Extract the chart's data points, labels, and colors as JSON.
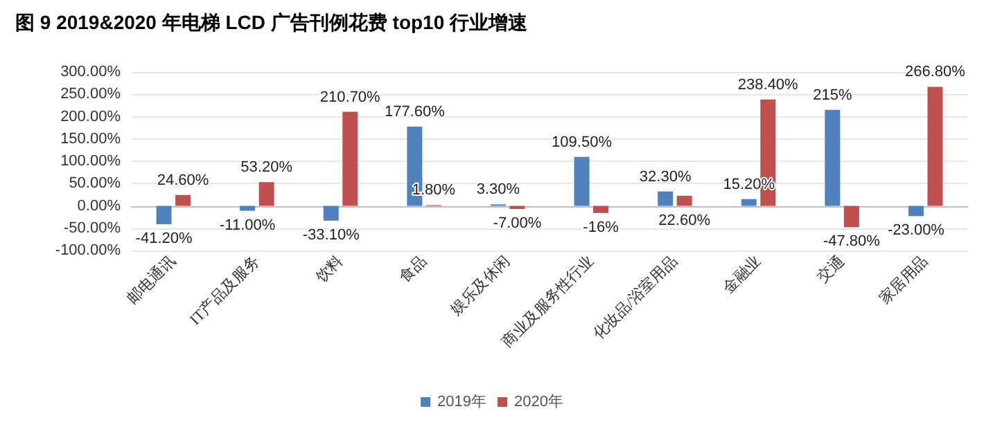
{
  "chart_data": {
    "type": "bar",
    "title": "图 9 2019&2020 年电梯 LCD 广告刊例花费 top10 行业增速",
    "categories": [
      "邮电通讯",
      "IT产品及服务",
      "饮料",
      "食品",
      "娱乐及休闲",
      "商业及服务性行业",
      "化妆品/浴室用品",
      "金融业",
      "交通",
      "家居用品"
    ],
    "series": [
      {
        "name": "2019年",
        "color": "#4f81bd",
        "values": [
          -41.2,
          -11.0,
          -33.1,
          177.6,
          3.3,
          109.5,
          32.3,
          15.2,
          215,
          -23.0
        ],
        "value_labels": [
          "-41.20%",
          "-11.00%",
          "-33.10%",
          "177.60%",
          "3.30%",
          "109.50%",
          "32.30%",
          "15.20%",
          "215%",
          "-23.00%"
        ]
      },
      {
        "name": "2020年",
        "color": "#c0504d",
        "values": [
          24.6,
          53.2,
          210.7,
          1.8,
          -7.0,
          -16,
          22.6,
          238.4,
          -47.8,
          266.8
        ],
        "value_labels": [
          "24.60%",
          "53.20%",
          "210.70%",
          "1.80%",
          "-7.00%",
          "-16%",
          "22.60%",
          "238.40%",
          "-47.80%",
          "266.80%"
        ]
      }
    ],
    "ylim": [
      -100,
      300
    ],
    "yticks": [
      {
        "value": -100,
        "label": "-100.00%"
      },
      {
        "value": -50,
        "label": "-50.00%"
      },
      {
        "value": 0,
        "label": "0.00%"
      },
      {
        "value": 50,
        "label": "50.00%"
      },
      {
        "value": 100,
        "label": "100.00%"
      },
      {
        "value": 150,
        "label": "150.00%"
      },
      {
        "value": 200,
        "label": "200.00%"
      },
      {
        "value": 250,
        "label": "250.00%"
      },
      {
        "value": 300,
        "label": "300.00%"
      }
    ],
    "grid": "y",
    "legend": "bottom"
  }
}
